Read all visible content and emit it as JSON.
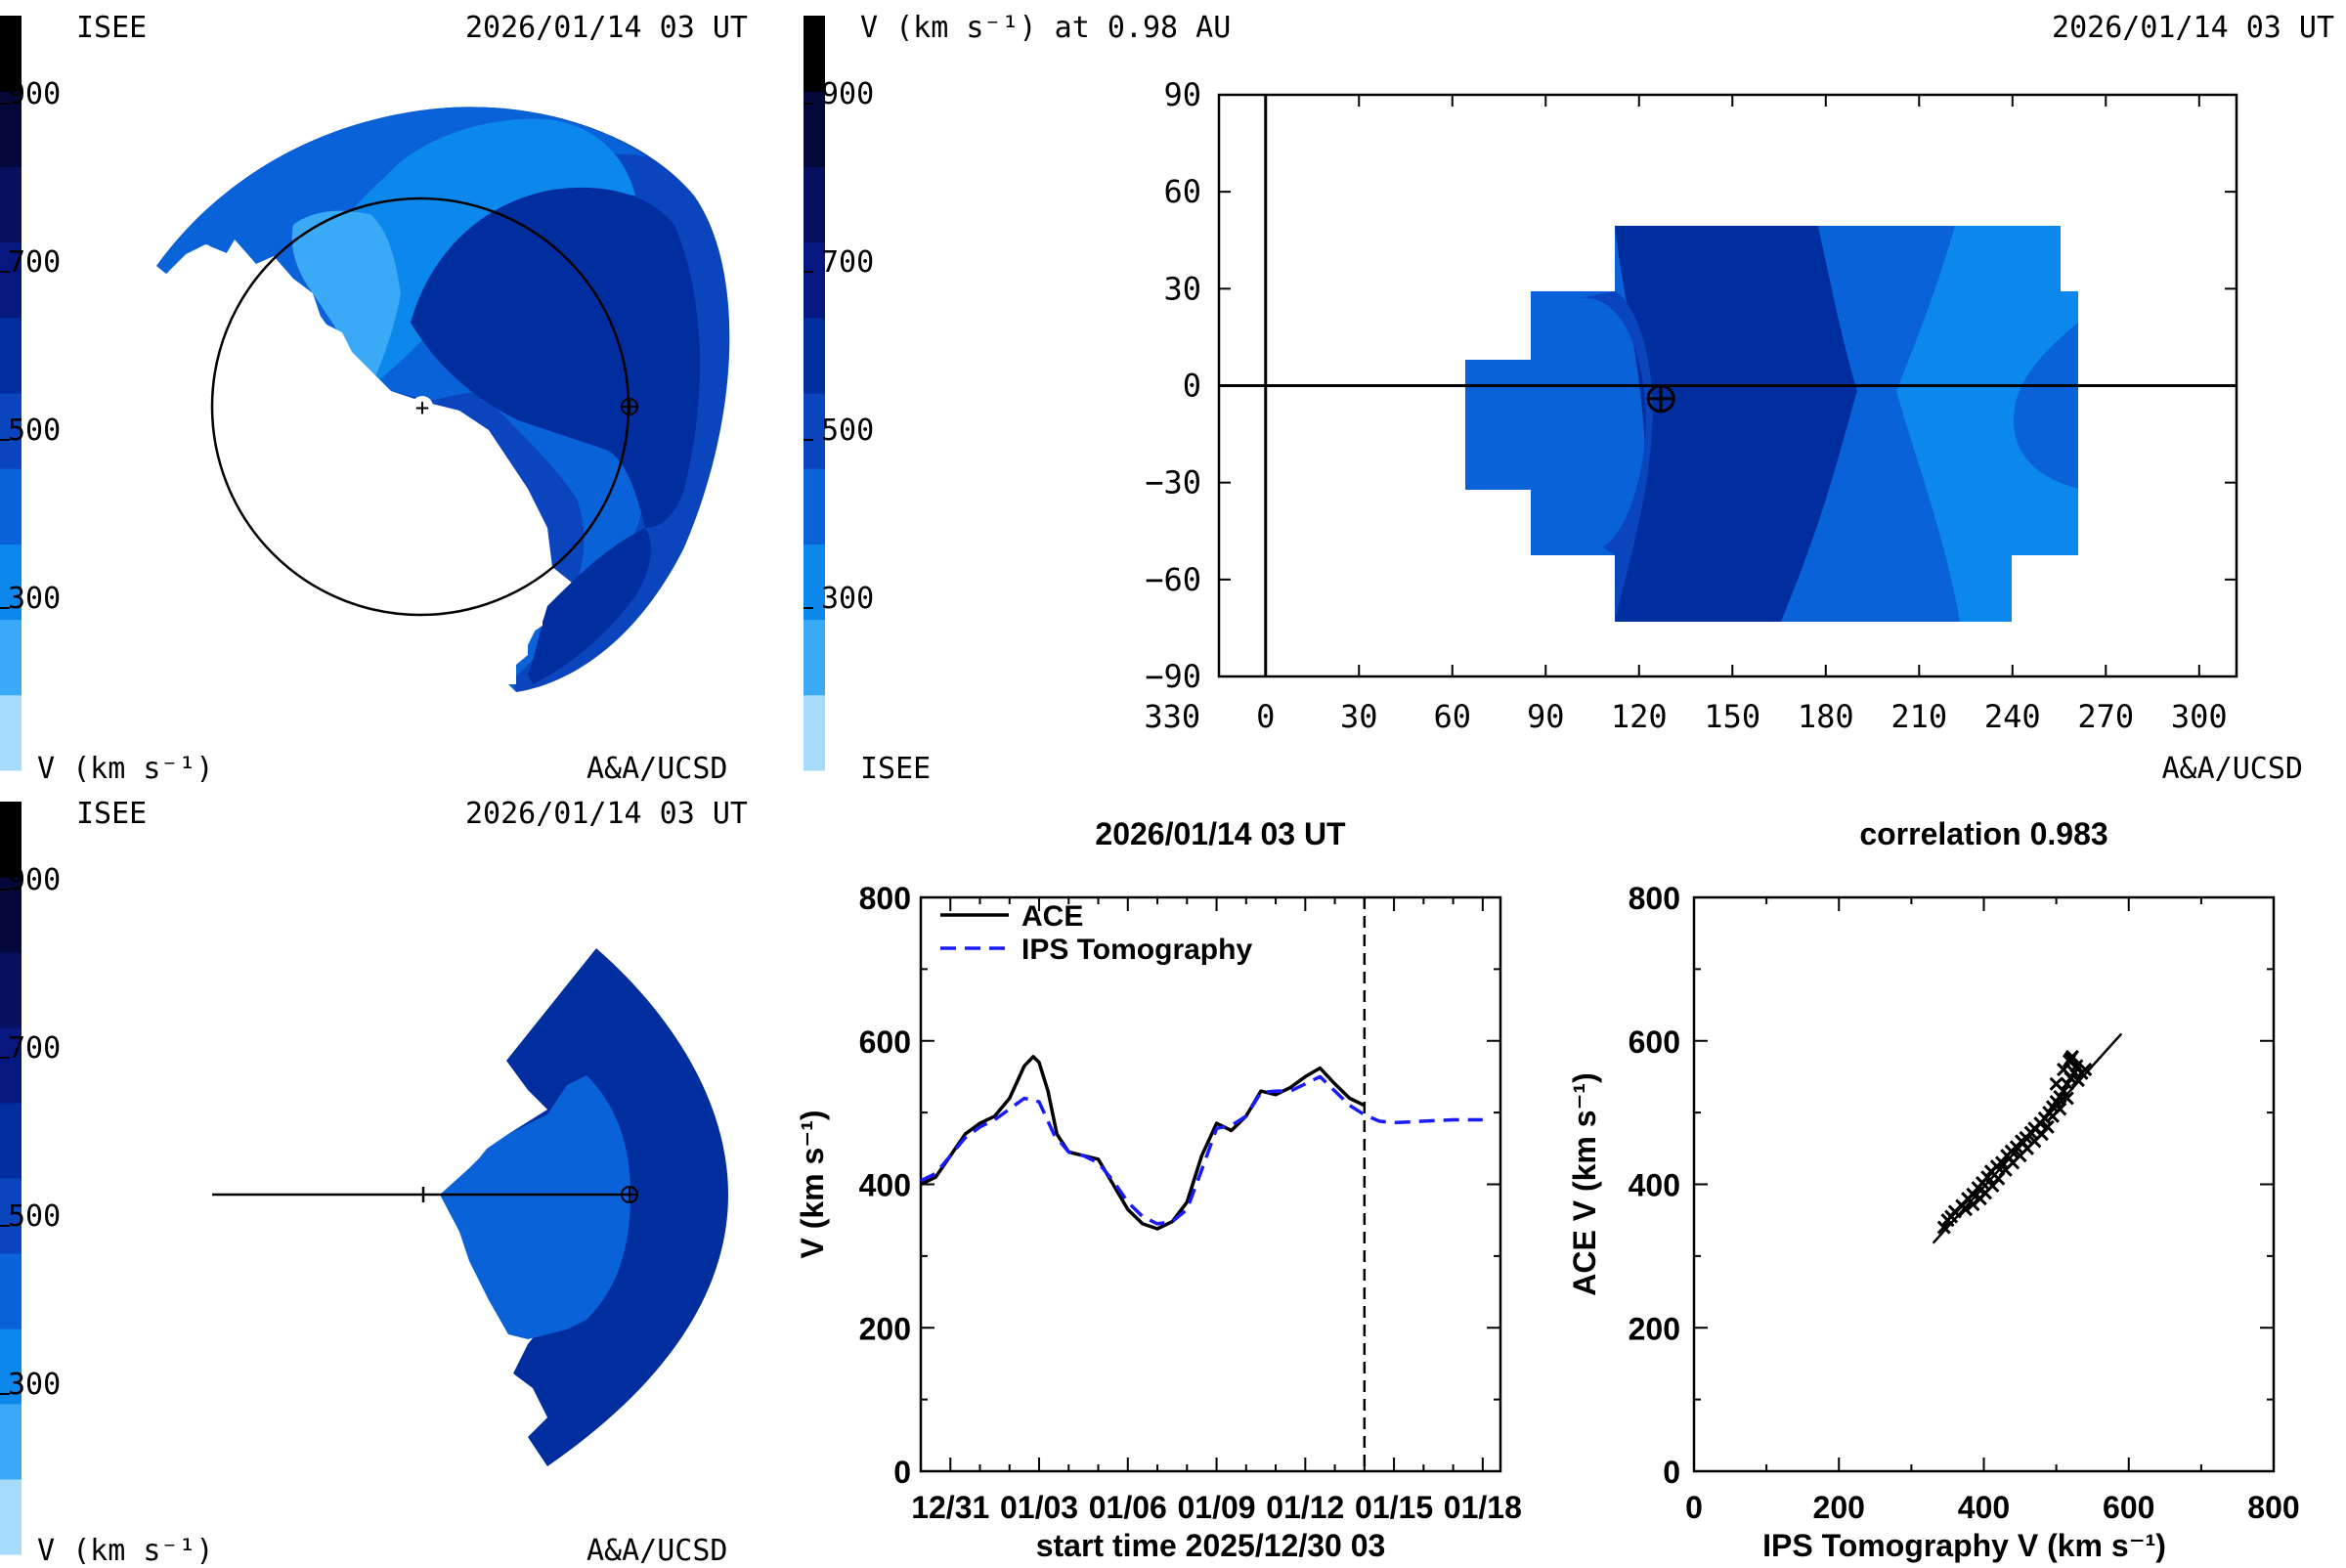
{
  "colorscale": {
    "colors": [
      "#a6dcfa",
      "#3aa9f6",
      "#0c87ec",
      "#0a62d8",
      "#0a45bd",
      "#002e9e",
      "#06187f",
      "#06105e",
      "#030838",
      "#000000"
    ],
    "tick_labels": [
      "900",
      "700",
      "500",
      "300"
    ]
  },
  "top_left": {
    "org": "ISEE",
    "timestamp": "2026/01/14 03 UT",
    "unit_label": "V (km s⁻¹)",
    "credit": "A&A/UCSD"
  },
  "bottom_left": {
    "org": "ISEE",
    "timestamp": "2026/01/14 03 UT",
    "unit_label": "V (km s⁻¹)",
    "credit": "A&A/UCSD"
  },
  "top_right": {
    "title": "V (km s⁻¹) at 0.98 AU",
    "timestamp": "2026/01/14 03 UT",
    "org": "ISEE",
    "credit": "A&A/UCSD"
  },
  "chart_data": [
    {
      "type": "heatmap",
      "title": "V (km s⁻¹) at 0.98 AU",
      "x_tick_labels": [
        "330",
        "0",
        "30",
        "60",
        "90",
        "120",
        "150",
        "180",
        "210",
        "240",
        "270",
        "300"
      ],
      "y_tick_labels": [
        "90",
        "60",
        "30",
        "0",
        "−30",
        "−60",
        "−90"
      ],
      "xlim": [
        -15,
        312
      ],
      "ylim": [
        -90,
        90
      ],
      "earth_marker": {
        "longitude": 127,
        "latitude": -4
      },
      "value_range_kms": [
        300,
        600
      ]
    },
    {
      "type": "line",
      "title": "2026/01/14 03 UT",
      "xlabel": "start time 2025/12/30 03",
      "ylabel": "V (km s⁻¹)",
      "x_unit": "days from 2025/12/30 03 UT",
      "xlim": [
        0,
        19.6
      ],
      "ylim": [
        0,
        800
      ],
      "x_tick_labels": [
        "12/31",
        "01/03",
        "01/06",
        "01/09",
        "01/12",
        "01/15",
        "01/18"
      ],
      "x_tick_days": [
        1,
        4,
        7,
        10,
        13,
        16,
        19
      ],
      "y_ticks": [
        0,
        200,
        400,
        600,
        800
      ],
      "current_time_day": 15,
      "series": [
        {
          "name": "ACE",
          "color": "#000000",
          "dash": "solid",
          "x": [
            0,
            0.5,
            1,
            1.5,
            2,
            2.5,
            3,
            3.5,
            3.8,
            4,
            4.3,
            4.6,
            5,
            5.5,
            6,
            6.5,
            7,
            7.5,
            8,
            8.5,
            9,
            9.5,
            10,
            10.5,
            11,
            11.5,
            12,
            12.5,
            13,
            13.5,
            14,
            14.5,
            15
          ],
          "y": [
            400,
            410,
            440,
            470,
            485,
            495,
            520,
            565,
            578,
            570,
            530,
            470,
            445,
            440,
            435,
            400,
            365,
            345,
            338,
            348,
            375,
            440,
            485,
            475,
            495,
            530,
            525,
            535,
            550,
            562,
            540,
            520,
            510
          ]
        },
        {
          "name": "IPS Tomography",
          "color": "#1a1aff",
          "dash": "dashed",
          "x": [
            0,
            0.5,
            1,
            1.5,
            2,
            2.5,
            3,
            3.5,
            4,
            4.5,
            5,
            5.5,
            6,
            6.5,
            7,
            7.5,
            8,
            8.5,
            9,
            9.5,
            10,
            10.5,
            11,
            11.5,
            12,
            12.5,
            13,
            13.5,
            14,
            14.5,
            15,
            15.5,
            16,
            16.5,
            17,
            17.5,
            18,
            18.5,
            19
          ],
          "y": [
            405,
            415,
            440,
            465,
            480,
            490,
            505,
            520,
            515,
            470,
            445,
            440,
            430,
            405,
            375,
            355,
            345,
            348,
            365,
            420,
            478,
            482,
            495,
            528,
            530,
            530,
            540,
            550,
            530,
            510,
            497,
            488,
            486,
            487,
            488,
            489,
            490,
            490,
            490
          ]
        }
      ]
    },
    {
      "type": "scatter",
      "title": "correlation 0.983",
      "xlabel": "IPS Tomography V (km s⁻¹)",
      "ylabel": "ACE V (km s⁻¹)",
      "xlim": [
        0,
        800
      ],
      "ylim": [
        0,
        800
      ],
      "x_ticks": [
        0,
        200,
        400,
        600,
        800
      ],
      "y_ticks": [
        0,
        200,
        400,
        600,
        800
      ],
      "fit_line": {
        "x": [
          330,
          590
        ],
        "y": [
          318,
          610
        ]
      },
      "points": [
        [
          345,
          340
        ],
        [
          350,
          350
        ],
        [
          355,
          355
        ],
        [
          360,
          362
        ],
        [
          370,
          370
        ],
        [
          378,
          380
        ],
        [
          385,
          386
        ],
        [
          392,
          395
        ],
        [
          398,
          402
        ],
        [
          405,
          410
        ],
        [
          410,
          418
        ],
        [
          418,
          425
        ],
        [
          425,
          430
        ],
        [
          432,
          440
        ],
        [
          438,
          446
        ],
        [
          445,
          452
        ],
        [
          452,
          460
        ],
        [
          458,
          465
        ],
        [
          465,
          472
        ],
        [
          470,
          478
        ],
        [
          478,
          485
        ],
        [
          484,
          492
        ],
        [
          490,
          500
        ],
        [
          495,
          508
        ],
        [
          500,
          515
        ],
        [
          505,
          522
        ],
        [
          510,
          530
        ],
        [
          515,
          540
        ],
        [
          520,
          548
        ],
        [
          525,
          556
        ],
        [
          528,
          565
        ],
        [
          522,
          578
        ],
        [
          518,
          572
        ],
        [
          510,
          560
        ],
        [
          500,
          540
        ],
        [
          530,
          545
        ],
        [
          535,
          555
        ],
        [
          540,
          560
        ],
        [
          520,
          575
        ],
        [
          515,
          520
        ],
        [
          505,
          505
        ],
        [
          495,
          495
        ],
        [
          488,
          480
        ],
        [
          480,
          470
        ],
        [
          470,
          460
        ],
        [
          460,
          450
        ],
        [
          450,
          440
        ],
        [
          440,
          430
        ],
        [
          430,
          420
        ],
        [
          420,
          408
        ],
        [
          412,
          398
        ],
        [
          402,
          388
        ],
        [
          395,
          380
        ],
        [
          385,
          372
        ],
        [
          375,
          365
        ]
      ]
    }
  ]
}
